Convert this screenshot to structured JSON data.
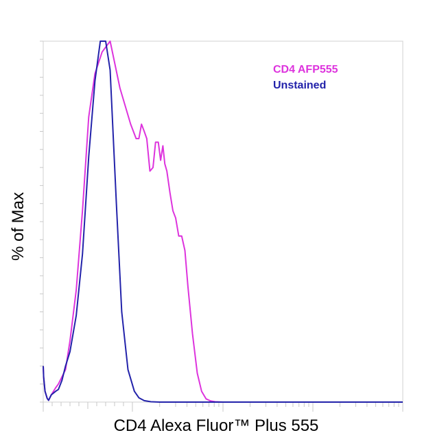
{
  "chart_data": {
    "type": "line",
    "title": "",
    "xlabel": "CD4 Alexa Fluor™ Plus 555",
    "ylabel": "% of Max",
    "x_scale": "log",
    "x_tick_labels_shown": false,
    "y_tick_labels_shown": false,
    "ylim": [
      0,
      100
    ],
    "grid": false,
    "legend_position": "top-right",
    "series": [
      {
        "name": "CD4 AFP555",
        "color": "#dd33dd",
        "points": [
          [
            0.0,
            10
          ],
          [
            0.5,
            7
          ],
          [
            2.0,
            3
          ],
          [
            4.5,
            1
          ],
          [
            6.0,
            0.5
          ],
          [
            9.0,
            2
          ],
          [
            14.0,
            4
          ],
          [
            17.0,
            5
          ],
          [
            21.0,
            7
          ],
          [
            25.0,
            9
          ],
          [
            30.0,
            17
          ],
          [
            37.0,
            31
          ],
          [
            44.0,
            53
          ],
          [
            51.0,
            79
          ],
          [
            58.0,
            91
          ],
          [
            66.0,
            97
          ],
          [
            75.0,
            100
          ],
          [
            86.0,
            87
          ],
          [
            98.0,
            77
          ],
          [
            110.0,
            73
          ],
          [
            118.0,
            73
          ],
          [
            126.0,
            77
          ],
          [
            135.0,
            75
          ],
          [
            144.0,
            73
          ],
          [
            156.0,
            64
          ],
          [
            169.0,
            65
          ],
          [
            180.0,
            72
          ],
          [
            193.0,
            72
          ],
          [
            205.0,
            67
          ],
          [
            217.0,
            71
          ],
          [
            228.0,
            66
          ],
          [
            240.0,
            64
          ],
          [
            260.0,
            58
          ],
          [
            280.0,
            53
          ],
          [
            300.0,
            51
          ],
          [
            325.0,
            46
          ],
          [
            350.0,
            46
          ],
          [
            380.0,
            42
          ],
          [
            410.0,
            32
          ],
          [
            460.0,
            19
          ],
          [
            520.0,
            8
          ],
          [
            580.0,
            3
          ],
          [
            650.0,
            0.9
          ],
          [
            730.0,
            0.3
          ],
          [
            820.0,
            0.1
          ],
          [
            1000.0,
            0
          ],
          [
            10000.0,
            0
          ],
          [
            100000.0,
            0
          ]
        ]
      },
      {
        "name": "Unstained",
        "color": "#2222aa",
        "points": [
          [
            0.0,
            10
          ],
          [
            0.5,
            7
          ],
          [
            2.0,
            3
          ],
          [
            4.5,
            1
          ],
          [
            6.0,
            0.5
          ],
          [
            9.0,
            2
          ],
          [
            14.0,
            3
          ],
          [
            17.0,
            3.5
          ],
          [
            21.0,
            6
          ],
          [
            25.0,
            10
          ],
          [
            30.0,
            14
          ],
          [
            37.0,
            24
          ],
          [
            44.0,
            41
          ],
          [
            51.0,
            68
          ],
          [
            58.0,
            89
          ],
          [
            64.0,
            100
          ],
          [
            70.0,
            100
          ],
          [
            75.0,
            92
          ],
          [
            82.0,
            55
          ],
          [
            88.0,
            25
          ],
          [
            95.0,
            9
          ],
          [
            105.0,
            3
          ],
          [
            118.0,
            1.2
          ],
          [
            135.0,
            0.4
          ],
          [
            160.0,
            0.1
          ],
          [
            200.0,
            0
          ],
          [
            1000.0,
            0
          ],
          [
            10000.0,
            0
          ],
          [
            100000.0,
            0
          ]
        ]
      }
    ]
  }
}
